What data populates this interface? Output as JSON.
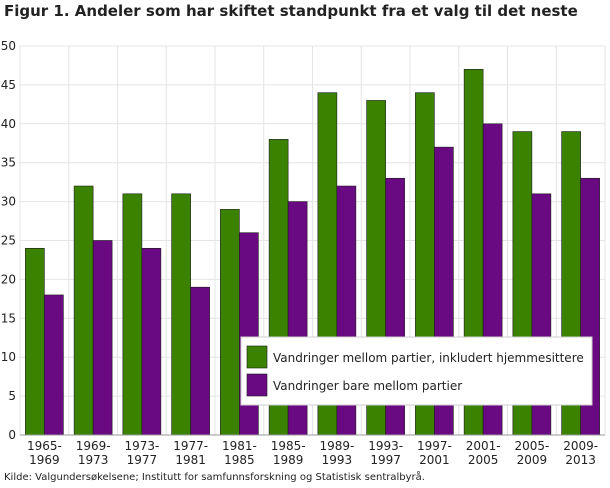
{
  "chart_data": {
    "type": "bar",
    "title": "Figur 1. Andeler som har skiftet standpunkt fra et valg til det neste",
    "source": "Kilde: Valgundersøkelsene; Institutt for samfunnsforskning og Statistisk sentralbyrå.",
    "categories": [
      [
        "1965-",
        "1969"
      ],
      [
        "1969-",
        "1973"
      ],
      [
        "1973-",
        "1977"
      ],
      [
        "1977-",
        "1981"
      ],
      [
        "1981-",
        "1985"
      ],
      [
        "1985-",
        "1989"
      ],
      [
        "1989-",
        "1993"
      ],
      [
        "1993-",
        "1997"
      ],
      [
        "1997-",
        "2001"
      ],
      [
        "2001-",
        "2005"
      ],
      [
        "2005-",
        "2009"
      ],
      [
        "2009-",
        "2013"
      ]
    ],
    "series": [
      {
        "name": "Vandringer mellom partier, inkludert hjemmesittere",
        "color": "#3a8200",
        "values": [
          24,
          32,
          31,
          31,
          29,
          38,
          44,
          43,
          44,
          47,
          39,
          39
        ]
      },
      {
        "name": "Vandringer bare mellom partier",
        "color": "#6a0a82",
        "values": [
          18,
          25,
          24,
          19,
          26,
          30,
          32,
          33,
          37,
          40,
          31,
          33
        ]
      }
    ],
    "ylim": [
      0,
      50
    ],
    "yticks": [
      0,
      5,
      10,
      15,
      20,
      25,
      30,
      35,
      40,
      45,
      50
    ],
    "grid": true,
    "legend": "bottom-right"
  }
}
